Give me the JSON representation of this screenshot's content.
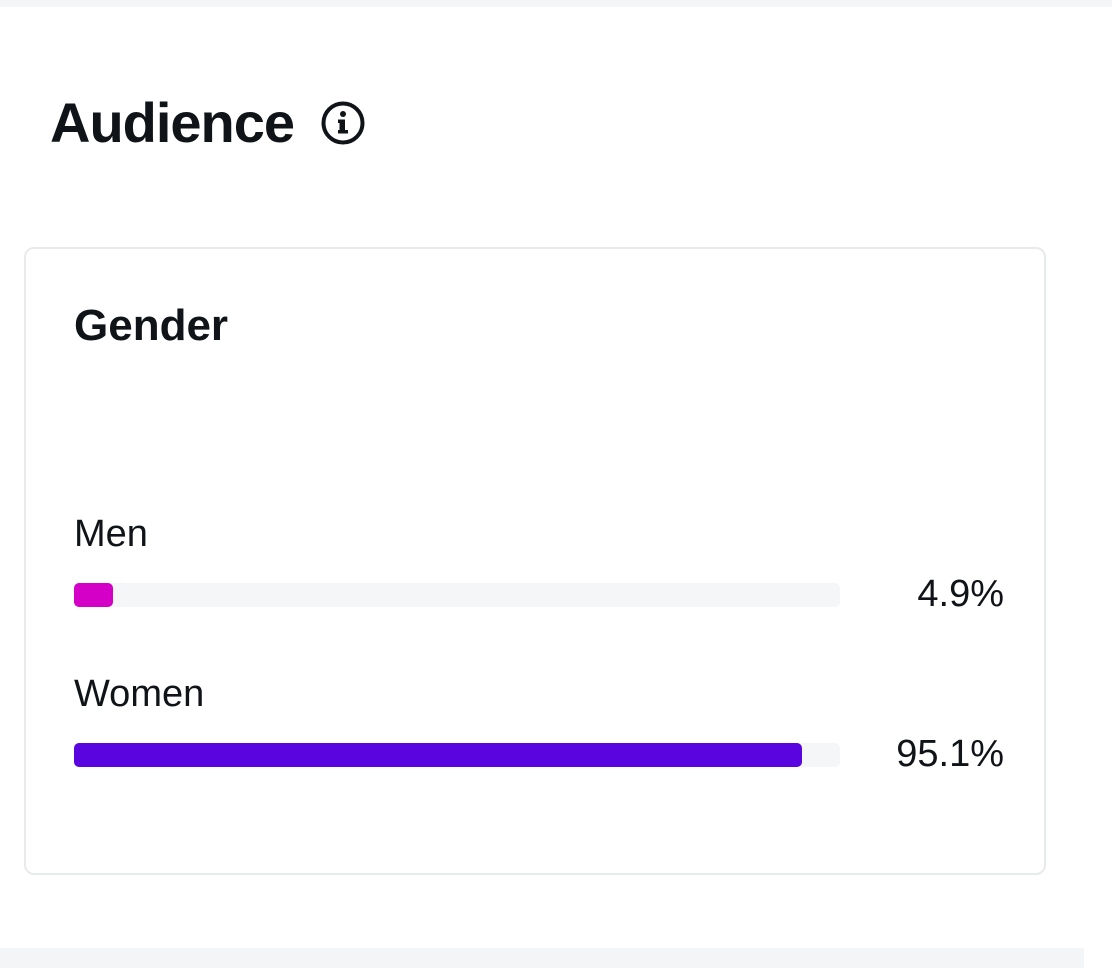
{
  "section": {
    "title": "Audience",
    "info_icon": "info-icon"
  },
  "gender_card": {
    "title": "Gender",
    "rows": [
      {
        "label": "Men",
        "value_text": "4.9%",
        "percent": 4.9,
        "color": "#d400c8"
      },
      {
        "label": "Women",
        "value_text": "95.1%",
        "percent": 95.1,
        "color": "#5a05e0"
      }
    ]
  }
}
